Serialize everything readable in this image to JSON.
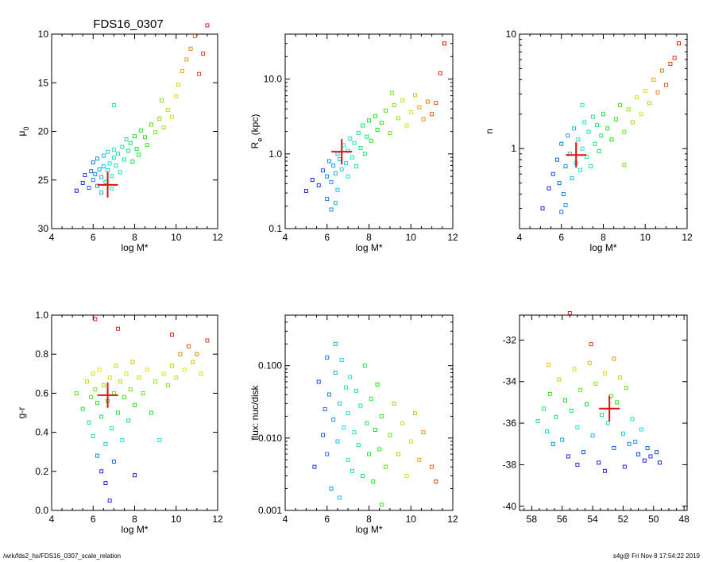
{
  "figure_title": "FDS16_0307",
  "footer": {
    "path": "/wrk/fds2_hs/FDS16_0307_scale_relation",
    "stamp": "s4g@  Fri Nov  8 17:54:22 2019"
  },
  "chart_data": [
    {
      "id": "mu0",
      "type": "scatter",
      "title": "FDS16_0307",
      "xlabel": "log M*",
      "ylabel": "μ",
      "ylabel_sub": "0",
      "xlim": [
        4,
        12
      ],
      "ylim": [
        30,
        10
      ],
      "yscale": "linear",
      "xticks": [
        4,
        6,
        8,
        10,
        12
      ],
      "xticklabels": [
        "4",
        "6",
        "8",
        "10",
        "12"
      ],
      "yticks": [
        10,
        15,
        20,
        25,
        30
      ],
      "yticklabels": [
        "10",
        "15",
        "20",
        "25",
        "30"
      ],
      "target": {
        "x": 6.7,
        "y": 25.5
      },
      "points": [
        [
          5.2,
          26.1
        ],
        [
          5.5,
          25.3
        ],
        [
          5.6,
          24.5
        ],
        [
          5.8,
          25.8
        ],
        [
          5.9,
          24.1
        ],
        [
          6.0,
          23.2
        ],
        [
          6.0,
          25.0
        ],
        [
          6.1,
          24.4
        ],
        [
          6.2,
          22.8
        ],
        [
          6.2,
          25.6
        ],
        [
          6.3,
          23.9
        ],
        [
          6.4,
          24.7
        ],
        [
          6.5,
          22.5
        ],
        [
          6.5,
          23.6
        ],
        [
          6.6,
          25.2
        ],
        [
          6.7,
          24.0
        ],
        [
          6.7,
          22.1
        ],
        [
          6.8,
          23.3
        ],
        [
          6.9,
          24.6
        ],
        [
          7.0,
          22.7
        ],
        [
          7.0,
          21.9
        ],
        [
          7.1,
          23.5
        ],
        [
          7.2,
          22.3
        ],
        [
          7.3,
          24.2
        ],
        [
          7.4,
          21.6
        ],
        [
          7.5,
          22.9
        ],
        [
          7.6,
          20.8
        ],
        [
          7.7,
          22.0
        ],
        [
          7.8,
          21.2
        ],
        [
          7.9,
          23.1
        ],
        [
          8.0,
          20.5
        ],
        [
          8.1,
          21.8
        ],
        [
          8.2,
          22.4
        ],
        [
          8.3,
          19.9
        ],
        [
          8.5,
          20.6
        ],
        [
          8.6,
          21.4
        ],
        [
          8.8,
          19.3
        ],
        [
          9.0,
          20.1
        ],
        [
          9.2,
          18.7
        ],
        [
          9.4,
          19.6
        ],
        [
          9.6,
          17.8
        ],
        [
          9.8,
          18.5
        ],
        [
          10.0,
          16.4
        ],
        [
          10.1,
          15.2
        ],
        [
          10.3,
          13.8
        ],
        [
          10.5,
          12.6
        ],
        [
          10.7,
          11.5
        ],
        [
          10.9,
          10.2
        ],
        [
          11.1,
          14.1
        ],
        [
          11.3,
          12.0
        ],
        [
          11.5,
          9.1
        ],
        [
          7.0,
          17.3
        ],
        [
          9.3,
          16.8
        ],
        [
          6.9,
          25.9
        ],
        [
          6.4,
          26.3
        ]
      ]
    },
    {
      "id": "re",
      "type": "scatter",
      "xlabel": "log M*",
      "ylabel": "R",
      "ylabel_sub": "e",
      "ylabel_suffix": " (kpc)",
      "xlim": [
        4,
        12
      ],
      "ylim": [
        0.1,
        40
      ],
      "yscale": "log",
      "xticks": [
        4,
        6,
        8,
        10,
        12
      ],
      "xticklabels": [
        "4",
        "6",
        "8",
        "10",
        "12"
      ],
      "yticks": [
        0.1,
        1.0,
        10.0
      ],
      "yticklabels": [
        "0.1",
        "1.0",
        "10.0"
      ],
      "target": {
        "x": 6.7,
        "y": 1.07
      },
      "points": [
        [
          5.0,
          0.32
        ],
        [
          5.3,
          0.45
        ],
        [
          5.6,
          0.38
        ],
        [
          5.8,
          0.6
        ],
        [
          6.0,
          0.5
        ],
        [
          6.0,
          0.25
        ],
        [
          6.1,
          0.8
        ],
        [
          6.2,
          0.42
        ],
        [
          6.3,
          0.7
        ],
        [
          6.4,
          0.55
        ],
        [
          6.5,
          1.0
        ],
        [
          6.5,
          0.33
        ],
        [
          6.6,
          0.85
        ],
        [
          6.7,
          0.62
        ],
        [
          6.8,
          1.3
        ],
        [
          6.9,
          0.75
        ],
        [
          7.0,
          1.1
        ],
        [
          7.0,
          0.5
        ],
        [
          7.1,
          1.6
        ],
        [
          7.2,
          0.9
        ],
        [
          7.3,
          1.4
        ],
        [
          7.4,
          0.68
        ],
        [
          7.5,
          1.9
        ],
        [
          7.6,
          1.2
        ],
        [
          7.7,
          2.4
        ],
        [
          7.8,
          1.0
        ],
        [
          7.9,
          1.7
        ],
        [
          8.0,
          2.8
        ],
        [
          8.1,
          1.5
        ],
        [
          8.3,
          3.2
        ],
        [
          8.4,
          2.1
        ],
        [
          8.6,
          2.6
        ],
        [
          8.8,
          3.8
        ],
        [
          9.0,
          1.9
        ],
        [
          9.2,
          4.5
        ],
        [
          9.4,
          3.0
        ],
        [
          9.6,
          5.2
        ],
        [
          9.8,
          2.4
        ],
        [
          10.0,
          3.6
        ],
        [
          10.2,
          6.1
        ],
        [
          10.4,
          4.2
        ],
        [
          10.6,
          2.9
        ],
        [
          10.8,
          5.0
        ],
        [
          11.0,
          3.4
        ],
        [
          11.2,
          4.8
        ],
        [
          11.4,
          12.0
        ],
        [
          11.6,
          30.0
        ],
        [
          6.4,
          0.22
        ],
        [
          6.2,
          0.18
        ],
        [
          9.1,
          6.5
        ]
      ]
    },
    {
      "id": "n",
      "type": "scatter",
      "xlabel": "log M*",
      "ylabel": "n",
      "xlim": [
        4,
        12
      ],
      "ylim": [
        0.2,
        10
      ],
      "yscale": "log",
      "xticks": [
        4,
        6,
        8,
        10,
        12
      ],
      "xticklabels": [
        "4",
        "6",
        "8",
        "10",
        "12"
      ],
      "yticks": [
        1,
        10
      ],
      "yticklabels": [
        "1",
        "10"
      ],
      "target": {
        "x": 6.7,
        "y": 0.88
      },
      "points": [
        [
          5.1,
          0.3
        ],
        [
          5.4,
          0.45
        ],
        [
          5.6,
          0.6
        ],
        [
          5.8,
          0.8
        ],
        [
          5.9,
          0.5
        ],
        [
          6.0,
          1.1
        ],
        [
          6.1,
          0.4
        ],
        [
          6.2,
          0.7
        ],
        [
          6.3,
          1.3
        ],
        [
          6.4,
          0.9
        ],
        [
          6.5,
          0.55
        ],
        [
          6.6,
          1.5
        ],
        [
          6.7,
          0.75
        ],
        [
          6.8,
          1.2
        ],
        [
          6.9,
          0.65
        ],
        [
          7.0,
          1.0
        ],
        [
          7.1,
          1.7
        ],
        [
          7.2,
          0.85
        ],
        [
          7.3,
          1.4
        ],
        [
          7.4,
          0.7
        ],
        [
          7.5,
          1.9
        ],
        [
          7.6,
          1.1
        ],
        [
          7.7,
          1.6
        ],
        [
          7.8,
          0.95
        ],
        [
          7.9,
          1.3
        ],
        [
          8.0,
          2.0
        ],
        [
          8.2,
          1.5
        ],
        [
          8.4,
          1.2
        ],
        [
          8.6,
          1.8
        ],
        [
          8.8,
          2.4
        ],
        [
          9.0,
          1.4
        ],
        [
          9.2,
          2.2
        ],
        [
          9.4,
          1.7
        ],
        [
          9.6,
          2.8
        ],
        [
          9.8,
          2.0
        ],
        [
          10.0,
          3.2
        ],
        [
          10.2,
          2.5
        ],
        [
          10.4,
          4.0
        ],
        [
          10.6,
          3.1
        ],
        [
          10.8,
          4.8
        ],
        [
          11.0,
          3.6
        ],
        [
          11.2,
          5.5
        ],
        [
          11.4,
          6.2
        ],
        [
          11.6,
          8.3
        ],
        [
          6.0,
          0.28
        ],
        [
          6.2,
          0.32
        ],
        [
          7.0,
          2.4
        ],
        [
          9.0,
          0.72
        ]
      ]
    },
    {
      "id": "gr",
      "type": "scatter",
      "xlabel": "log M*",
      "ylabel": "g-r",
      "xlim": [
        4,
        12
      ],
      "ylim": [
        0,
        1
      ],
      "yscale": "linear",
      "xticks": [
        4,
        6,
        8,
        10,
        12
      ],
      "xticklabels": [
        "4",
        "6",
        "8",
        "10",
        "12"
      ],
      "yticks": [
        0,
        0.2,
        0.4,
        0.6,
        0.8,
        1.0
      ],
      "yticklabels": [
        "0.0",
        "0.2",
        "0.4",
        "0.6",
        "0.8",
        "1.0"
      ],
      "target": {
        "x": 6.7,
        "y": 0.59
      },
      "points": [
        [
          5.2,
          0.6
        ],
        [
          5.5,
          0.52
        ],
        [
          5.7,
          0.66
        ],
        [
          5.8,
          0.45
        ],
        [
          5.9,
          0.58
        ],
        [
          6.0,
          0.7
        ],
        [
          6.0,
          0.38
        ],
        [
          6.1,
          0.62
        ],
        [
          6.2,
          0.28
        ],
        [
          6.2,
          0.55
        ],
        [
          6.3,
          0.72
        ],
        [
          6.4,
          0.2
        ],
        [
          6.4,
          0.48
        ],
        [
          6.5,
          0.64
        ],
        [
          6.6,
          0.34
        ],
        [
          6.7,
          0.56
        ],
        [
          6.8,
          0.68
        ],
        [
          6.9,
          0.42
        ],
        [
          7.0,
          0.6
        ],
        [
          7.0,
          0.25
        ],
        [
          7.1,
          0.74
        ],
        [
          7.2,
          0.5
        ],
        [
          7.3,
          0.66
        ],
        [
          7.4,
          0.36
        ],
        [
          7.5,
          0.58
        ],
        [
          7.6,
          0.7
        ],
        [
          7.7,
          0.46
        ],
        [
          7.8,
          0.62
        ],
        [
          7.9,
          0.76
        ],
        [
          8.0,
          0.54
        ],
        [
          8.2,
          0.68
        ],
        [
          8.4,
          0.6
        ],
        [
          8.6,
          0.72
        ],
        [
          8.8,
          0.5
        ],
        [
          9.0,
          0.66
        ],
        [
          9.2,
          0.36
        ],
        [
          9.4,
          0.7
        ],
        [
          9.6,
          0.64
        ],
        [
          9.8,
          0.74
        ],
        [
          10.0,
          0.68
        ],
        [
          10.2,
          0.8
        ],
        [
          10.4,
          0.72
        ],
        [
          10.6,
          0.84
        ],
        [
          10.8,
          0.76
        ],
        [
          11.0,
          0.8
        ],
        [
          11.2,
          0.7
        ],
        [
          11.5,
          0.87
        ],
        [
          6.1,
          0.98
        ],
        [
          6.8,
          0.05
        ],
        [
          7.2,
          0.93
        ],
        [
          9.8,
          0.9
        ],
        [
          6.6,
          0.14
        ],
        [
          8.0,
          0.18
        ]
      ]
    },
    {
      "id": "flux",
      "type": "scatter",
      "xlabel": "log M*",
      "ylabel": "flux: nuc/disk",
      "xlim": [
        4,
        12
      ],
      "ylim": [
        0.001,
        0.5
      ],
      "yscale": "log",
      "xticks": [
        4,
        6,
        8,
        10,
        12
      ],
      "xticklabels": [
        "4",
        "6",
        "8",
        "10",
        "12"
      ],
      "yticks": [
        0.001,
        0.01,
        0.1
      ],
      "yticklabels": [
        "0.001",
        "0.010",
        "0.100"
      ],
      "points": [
        [
          5.4,
          0.004
        ],
        [
          5.6,
          0.06
        ],
        [
          5.8,
          0.011
        ],
        [
          5.9,
          0.025
        ],
        [
          6.0,
          0.13
        ],
        [
          6.0,
          0.006
        ],
        [
          6.1,
          0.04
        ],
        [
          6.2,
          0.002
        ],
        [
          6.3,
          0.018
        ],
        [
          6.4,
          0.08
        ],
        [
          6.5,
          0.009
        ],
        [
          6.6,
          0.03
        ],
        [
          6.6,
          0.0015
        ],
        [
          6.7,
          0.12
        ],
        [
          6.8,
          0.014
        ],
        [
          6.9,
          0.05
        ],
        [
          7.0,
          0.005
        ],
        [
          7.0,
          0.022
        ],
        [
          7.1,
          0.07
        ],
        [
          7.2,
          0.0035
        ],
        [
          7.3,
          0.012
        ],
        [
          7.4,
          0.045
        ],
        [
          7.5,
          0.008
        ],
        [
          7.6,
          0.028
        ],
        [
          7.7,
          0.003
        ],
        [
          7.8,
          0.1
        ],
        [
          7.9,
          0.016
        ],
        [
          8.0,
          0.006
        ],
        [
          8.1,
          0.035
        ],
        [
          8.2,
          0.0025
        ],
        [
          8.3,
          0.013
        ],
        [
          8.4,
          0.055
        ],
        [
          8.5,
          0.007
        ],
        [
          8.6,
          0.02
        ],
        [
          8.8,
          0.004
        ],
        [
          9.0,
          0.011
        ],
        [
          9.2,
          0.03
        ],
        [
          9.4,
          0.006
        ],
        [
          9.6,
          0.016
        ],
        [
          9.8,
          0.003
        ],
        [
          10.0,
          0.009
        ],
        [
          10.2,
          0.022
        ],
        [
          10.4,
          0.005
        ],
        [
          10.6,
          0.012
        ],
        [
          11.0,
          0.004
        ],
        [
          11.2,
          0.0025
        ],
        [
          8.6,
          0.0012
        ],
        [
          6.4,
          0.2
        ]
      ]
    },
    {
      "id": "pos",
      "type": "scatter",
      "xlim": [
        58.8,
        47.8
      ],
      "ylim": [
        -40.2,
        -30.8
      ],
      "yscale": "linear",
      "xticks": [
        58,
        56,
        54,
        52,
        50,
        48
      ],
      "xticklabels": [
        "58",
        "56",
        "54",
        "52",
        "50",
        "48"
      ],
      "yticks": [
        -40,
        -38,
        -36,
        -34,
        -32
      ],
      "yticklabels": [
        "-40",
        "-38",
        "-36",
        "-34",
        "-32"
      ],
      "target": {
        "x": 52.9,
        "y": -35.3
      },
      "points": [
        [
          57.6,
          -35.9
        ],
        [
          57.2,
          -35.3
        ],
        [
          57.0,
          -36.4
        ],
        [
          56.8,
          -34.6
        ],
        [
          56.6,
          -37.0
        ],
        [
          56.4,
          -35.7
        ],
        [
          56.2,
          -33.9
        ],
        [
          56.0,
          -36.8
        ],
        [
          55.8,
          -34.9
        ],
        [
          55.6,
          -37.6
        ],
        [
          55.4,
          -35.4
        ],
        [
          55.2,
          -33.4
        ],
        [
          55.0,
          -36.2
        ],
        [
          54.8,
          -34.4
        ],
        [
          54.6,
          -37.4
        ],
        [
          54.4,
          -35.1
        ],
        [
          54.2,
          -33.1
        ],
        [
          54.0,
          -36.6
        ],
        [
          53.8,
          -34.1
        ],
        [
          53.6,
          -37.9
        ],
        [
          53.4,
          -35.6
        ],
        [
          53.2,
          -33.6
        ],
        [
          53.0,
          -36.0
        ],
        [
          52.8,
          -34.7
        ],
        [
          52.6,
          -37.2
        ],
        [
          52.4,
          -35.0
        ],
        [
          52.2,
          -33.8
        ],
        [
          52.0,
          -36.5
        ],
        [
          51.8,
          -34.3
        ],
        [
          51.6,
          -37.0
        ],
        [
          51.4,
          -35.8
        ],
        [
          51.2,
          -36.9
        ],
        [
          51.0,
          -37.5
        ],
        [
          50.8,
          -36.3
        ],
        [
          50.6,
          -37.8
        ],
        [
          50.4,
          -37.2
        ],
        [
          50.2,
          -37.6
        ],
        [
          49.8,
          -37.4
        ],
        [
          49.6,
          -37.9
        ],
        [
          55.0,
          -38.0
        ],
        [
          53.2,
          -38.3
        ],
        [
          54.1,
          -32.2
        ],
        [
          52.6,
          -32.9
        ],
        [
          56.9,
          -33.2
        ],
        [
          55.5,
          -30.7
        ],
        [
          51.9,
          -38.1
        ]
      ]
    }
  ]
}
